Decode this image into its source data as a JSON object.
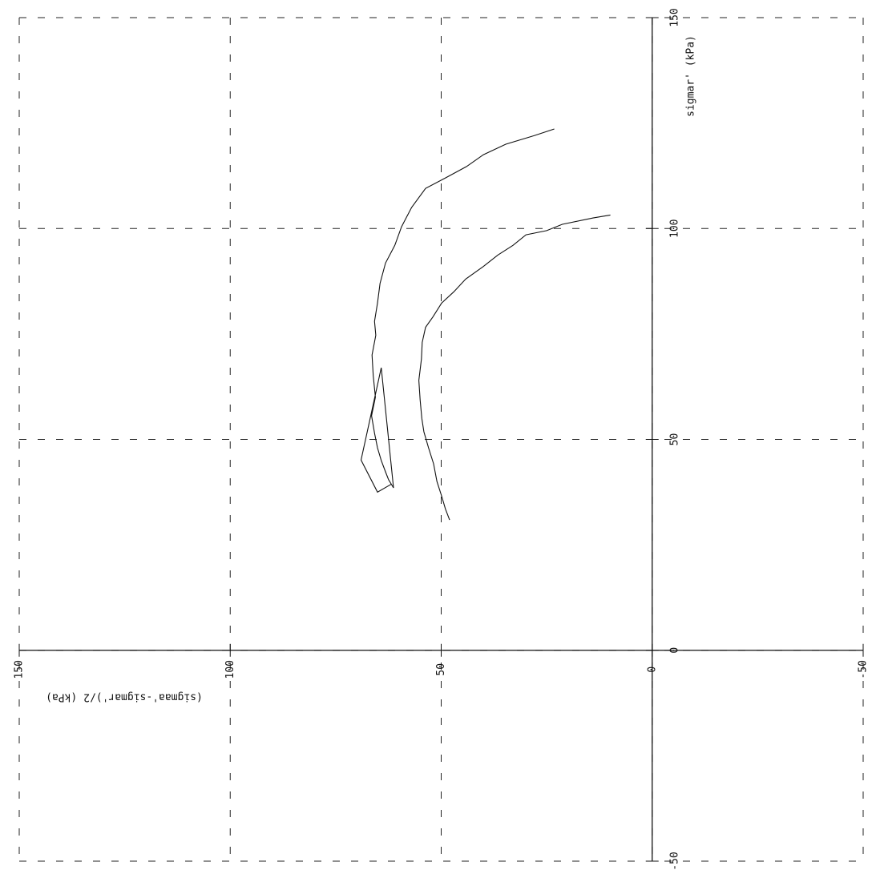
{
  "chart_data": {
    "type": "line",
    "x_label": "(sigmaa'-sigmar')/2 (kPa)",
    "y_label": "sigmar' (kPa)",
    "xlim": [
      150,
      -50
    ],
    "xticks": [
      150,
      100,
      50,
      0,
      -50
    ],
    "ylim": [
      -50,
      150
    ],
    "yticks": [
      -50,
      0,
      50,
      100,
      150
    ],
    "grid": true,
    "series": [
      {
        "color": "#111111",
        "x": [
          23.2,
          28,
          34.7,
          40,
          44,
          49,
          53.7,
          57,
          59.4,
          61,
          63.2,
          64.5,
          65.1,
          65.8,
          65.5,
          66.4,
          66.1,
          65.6,
          66.5,
          65.8,
          65.1,
          64.2,
          63.2,
          62.5,
          61.3,
          64.2,
          69,
          65.1,
          61.8
        ],
        "values": [
          123.6,
          122,
          120,
          117.5,
          114.7,
          112,
          109.5,
          105,
          100.4,
          96,
          91.8,
          87,
          82.3,
          78,
          74.7,
          70,
          65.1,
          60,
          55.6,
          51.5,
          48,
          45,
          42.3,
          40.5,
          38.5,
          67,
          45.1,
          37.5,
          39.4
        ]
      },
      {
        "color": "#111111",
        "x": [
          9.9,
          14,
          21.3,
          25,
          29.9,
          33,
          36.6,
          40,
          44.2,
          47,
          49.9,
          52,
          53.7,
          54.5,
          54.7,
          55.3,
          55,
          54.6,
          54.1,
          53,
          51.8,
          51,
          49.9,
          49,
          48
        ],
        "values": [
          103.2,
          102.5,
          101,
          99.5,
          98.5,
          96,
          93.7,
          91,
          88,
          85,
          82.3,
          79,
          76.6,
          73,
          69,
          64,
          59.4,
          55,
          51.8,
          48,
          44.2,
          40,
          36.6,
          33.5,
          30.9
        ]
      }
    ]
  }
}
